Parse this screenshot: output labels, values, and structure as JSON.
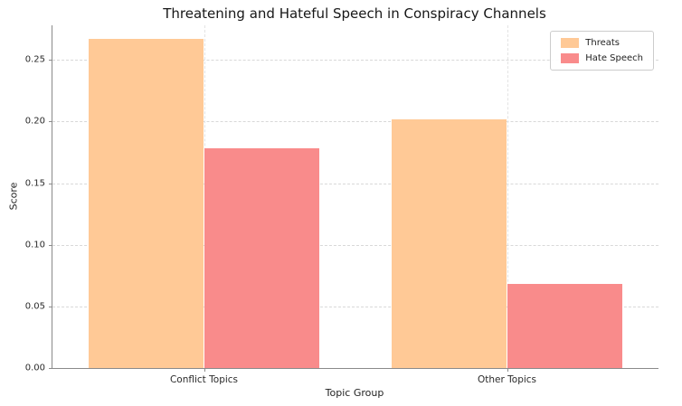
{
  "chart_data": {
    "type": "bar",
    "title": "Threatening and Hateful Speech in Conspiracy Channels",
    "xlabel": "Topic Group",
    "ylabel": "Score",
    "categories": [
      "Conflict Topics",
      "Other Topics"
    ],
    "series": [
      {
        "name": "Threats",
        "color": "#FFC996",
        "values": [
          0.267,
          0.202
        ]
      },
      {
        "name": "Hate Speech",
        "color": "#F98B8B",
        "values": [
          0.178,
          0.068
        ]
      }
    ],
    "ylim": [
      0,
      0.278
    ],
    "yticks": [
      0.0,
      0.05,
      0.1,
      0.15,
      0.2,
      0.25
    ],
    "grid": true,
    "grid_style": "dashed",
    "legend_position": "top-right"
  }
}
